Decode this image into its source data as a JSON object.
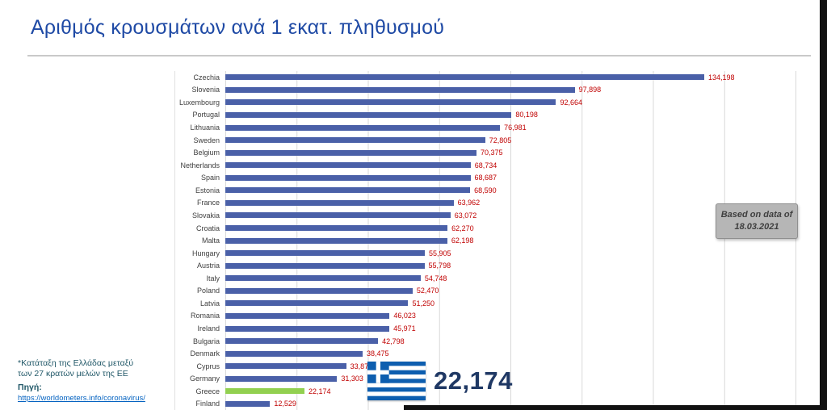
{
  "title": "Αριθμός κρουσμάτων ανά 1 εκατ. πληθυσμού",
  "chart_data": {
    "type": "bar",
    "orientation": "horizontal",
    "categories": [
      "Czechia",
      "Slovenia",
      "Luxembourg",
      "Portugal",
      "Lithuania",
      "Sweden",
      "Belgium",
      "Netherlands",
      "Spain",
      "Estonia",
      "France",
      "Slovakia",
      "Croatia",
      "Malta",
      "Hungary",
      "Austria",
      "Italy",
      "Poland",
      "Latvia",
      "Romania",
      "Ireland",
      "Bulgaria",
      "Denmark",
      "Cyprus",
      "Germany",
      "Greece",
      "Finland"
    ],
    "values": [
      134198,
      97898,
      92664,
      80198,
      76981,
      72805,
      70375,
      68734,
      68687,
      68590,
      63962,
      63072,
      62270,
      62198,
      55905,
      55798,
      54748,
      52470,
      51250,
      46023,
      45971,
      42798,
      38475,
      33875,
      31303,
      22174,
      12529
    ],
    "value_labels": [
      "134,198",
      "97,898",
      "92,664",
      "80,198",
      "76,981",
      "72,805",
      "70,375",
      "68,734",
      "68,687",
      "68,590",
      "63,962",
      "63,072",
      "62,270",
      "62,198",
      "55,905",
      "55,798",
      "54,748",
      "52,470",
      "51,250",
      "46,023",
      "45,971",
      "42,798",
      "38,475",
      "33,875",
      "31,303",
      "22,174",
      "12,529"
    ],
    "xlim": [
      0,
      160000
    ],
    "gridline_step": 20000,
    "grid": true,
    "bar_color": "#4A60A8",
    "highlight_category": "Greece",
    "highlight_color": "#92D050",
    "value_label_color": "#C00000",
    "xlabel": "",
    "ylabel": ""
  },
  "note_box": {
    "line1": "Based on data of",
    "line2": "18.03.2021"
  },
  "greece_callout": {
    "value": "22,174",
    "flag": "greece-flag"
  },
  "footnote": {
    "line1": "*Κατάταξη της Ελλάδας μεταξύ",
    "line2": "των 27 κρατών μελών της ΕΕ",
    "source_label": "Πηγή:",
    "source_url": "https://worldometers.info/coronavirus/"
  }
}
